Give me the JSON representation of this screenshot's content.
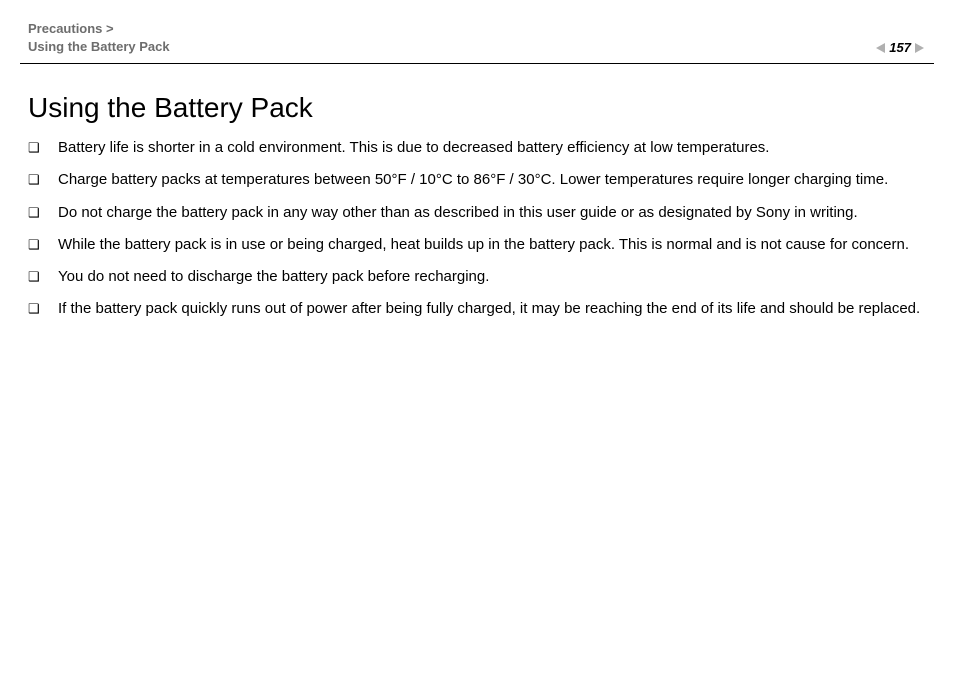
{
  "header": {
    "breadcrumb_line1": "Precautions >",
    "breadcrumb_line2": "Using the Battery Pack",
    "page_number": "157"
  },
  "content": {
    "title": "Using the Battery Pack",
    "bullet_marker": "❑",
    "items": [
      "Battery life is shorter in a cold environment. This is due to decreased battery efficiency at low temperatures.",
      "Charge battery packs at temperatures between 50°F / 10°C to 86°F / 30°C. Lower temperatures require longer charging time.",
      "Do not charge the battery pack in any way other than as described in this user guide or as designated by Sony in writing.",
      "While the battery pack is in use or being charged, heat builds up in the battery pack. This is normal and is not cause for concern.",
      "You do not need to discharge the battery pack before recharging.",
      "If the battery pack quickly runs out of power after being fully charged, it may be reaching the end of its life and should be replaced."
    ]
  }
}
